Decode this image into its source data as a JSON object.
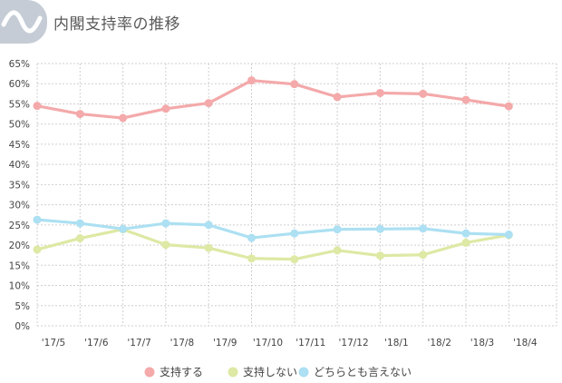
{
  "header": {
    "title": "内閣支持率の推移"
  },
  "chart_data": {
    "type": "line",
    "title": "内閣支持率の推移",
    "xlabel": "",
    "ylabel": "",
    "categories": [
      "'17/5",
      "'17/6",
      "'17/7",
      "'17/8",
      "'17/9",
      "'17/10",
      "'17/11",
      "'17/12",
      "'18/1",
      "'18/2",
      "'18/3",
      "'18/4"
    ],
    "ylim": [
      0,
      65
    ],
    "yticks": [
      0,
      5,
      10,
      15,
      20,
      25,
      30,
      35,
      40,
      45,
      50,
      55,
      60,
      65
    ],
    "ytick_labels": [
      "0%",
      "5%",
      "10%",
      "15%",
      "20%",
      "25%",
      "30%",
      "35%",
      "40%",
      "45%",
      "50%",
      "55%",
      "60%",
      "65%"
    ],
    "grid": true,
    "legend_position": "bottom",
    "series": [
      {
        "name": "支持する",
        "color": "#f4a9aa",
        "values": [
          54.5,
          52.5,
          51.5,
          53.8,
          55.2,
          60.8,
          59.9,
          56.7,
          57.7,
          57.5,
          56.0,
          54.4
        ]
      },
      {
        "name": "支持しない",
        "color": "#dde9a4",
        "values": [
          18.9,
          21.7,
          23.9,
          20.1,
          19.3,
          16.7,
          16.5,
          18.7,
          17.4,
          17.6,
          20.6,
          22.5
        ]
      },
      {
        "name": "どちらとも言えない",
        "color": "#ace0f2",
        "values": [
          26.3,
          25.4,
          24.0,
          25.4,
          25.0,
          21.8,
          22.9,
          23.9,
          24.0,
          24.1,
          22.9,
          22.6
        ]
      }
    ]
  }
}
